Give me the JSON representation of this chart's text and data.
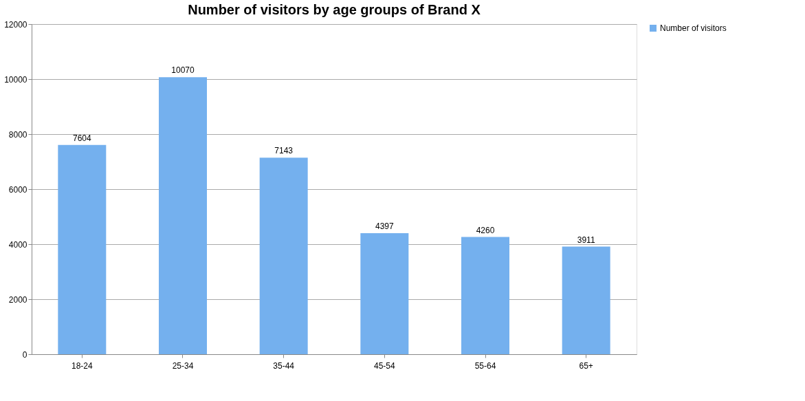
{
  "chart_data": {
    "type": "bar",
    "title": "Number of visitors by age groups of Brand X",
    "categories": [
      "18-24",
      "25-34",
      "35-44",
      "45-54",
      "55-64",
      "65+"
    ],
    "series": [
      {
        "name": "Number of visitors",
        "color": "#74b0ee",
        "values": [
          7604,
          10070,
          7143,
          4397,
          4260,
          3911
        ]
      }
    ],
    "ylim": [
      0,
      12000
    ],
    "yticks": [
      0,
      2000,
      4000,
      6000,
      8000,
      10000,
      12000
    ],
    "grid": "y",
    "legend": "right",
    "data_labels": true
  }
}
